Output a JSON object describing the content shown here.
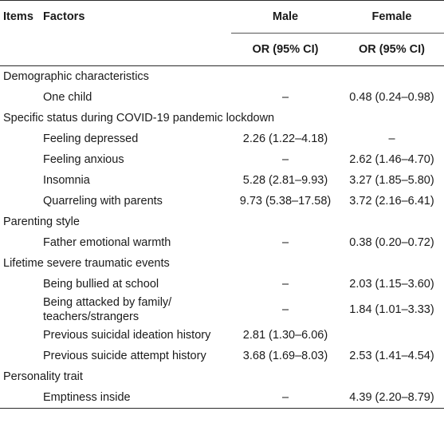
{
  "header": {
    "items": "Items",
    "factors": "Factors",
    "male": "Male",
    "female": "Female",
    "male_ci": "OR (95% CI)",
    "female_ci": "OR (95% CI)"
  },
  "rows": [
    {
      "type": "category",
      "label": "Demographic characteristics"
    },
    {
      "type": "item",
      "label": "One child",
      "male": "–",
      "female": "0.48 (0.24–0.98)"
    },
    {
      "type": "category",
      "label": "Specific status during COVID-19 pandemic lockdown"
    },
    {
      "type": "item",
      "label": "Feeling depressed",
      "male": "2.26 (1.22–4.18)",
      "female": "–"
    },
    {
      "type": "item",
      "label": "Feeling anxious",
      "male": "–",
      "female": "2.62 (1.46–4.70)"
    },
    {
      "type": "item",
      "label": "Insomnia",
      "male": "5.28 (2.81–9.93)",
      "female": "3.27 (1.85–5.80)"
    },
    {
      "type": "item",
      "label": "Quarreling with parents",
      "male": "9.73 (5.38–17.58)",
      "female": "3.72 (2.16–6.41)"
    },
    {
      "type": "category",
      "label": "Parenting style"
    },
    {
      "type": "item",
      "label": "Father emotional warmth",
      "male": "–",
      "female": "0.38 (0.20–0.72)"
    },
    {
      "type": "category",
      "label": "Lifetime severe traumatic events"
    },
    {
      "type": "item",
      "label": "Being bullied at school",
      "male": "–",
      "female": "2.03 (1.15–3.60)"
    },
    {
      "type": "item",
      "label": "Being attacked by family/ teachers/strangers",
      "male": "–",
      "female": "1.84 (1.01–3.33)"
    },
    {
      "type": "item",
      "label": "Previous suicidal ideation history",
      "male": "2.81 (1.30–6.06)",
      "female": ""
    },
    {
      "type": "item",
      "label": "Previous suicide attempt history",
      "male": "3.68 (1.69–8.03)",
      "female": "2.53 (1.41–4.54)"
    },
    {
      "type": "category",
      "label": "Personality trait"
    },
    {
      "type": "item",
      "label": "Emptiness inside",
      "male": "–",
      "female": "4.39 (2.20–8.79)"
    }
  ]
}
